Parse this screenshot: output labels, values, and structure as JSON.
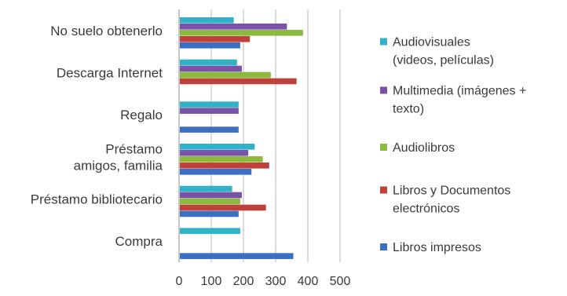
{
  "chart_data": {
    "type": "bar",
    "orientation": "horizontal",
    "title": "",
    "xlabel": "",
    "ylabel": "",
    "xlim": [
      0,
      500
    ],
    "xticks": [
      0,
      100,
      200,
      300,
      400,
      500
    ],
    "grid": true,
    "legend_position": "right",
    "categories": [
      [
        "No suelo obtenerlo"
      ],
      [
        "Descarga Internet"
      ],
      [
        "Regalo"
      ],
      [
        "Préstamo",
        "amigos, familia"
      ],
      [
        "Préstamo bibliotecario"
      ],
      [
        "Compra"
      ]
    ],
    "series": [
      {
        "name": [
          "Audiovisuales",
          "(videos, películas)"
        ],
        "color": "#31b2c7",
        "values": [
          170,
          180,
          185,
          235,
          165,
          190
        ]
      },
      {
        "name": [
          "Multimedia (imágenes +",
          "texto)"
        ],
        "color": "#7a52a8",
        "values": [
          335,
          195,
          185,
          215,
          195,
          0
        ]
      },
      {
        "name": [
          "Audiolibros"
        ],
        "color": "#8cba3f",
        "values": [
          385,
          285,
          0,
          260,
          190,
          0
        ]
      },
      {
        "name": [
          "Libros y Documentos",
          "electrónicos"
        ],
        "color": "#c0403b",
        "values": [
          220,
          365,
          0,
          280,
          270,
          0
        ]
      },
      {
        "name": [
          "Libros impresos"
        ],
        "color": "#3b6fc4",
        "values": [
          190,
          0,
          185,
          225,
          185,
          355
        ]
      }
    ]
  }
}
